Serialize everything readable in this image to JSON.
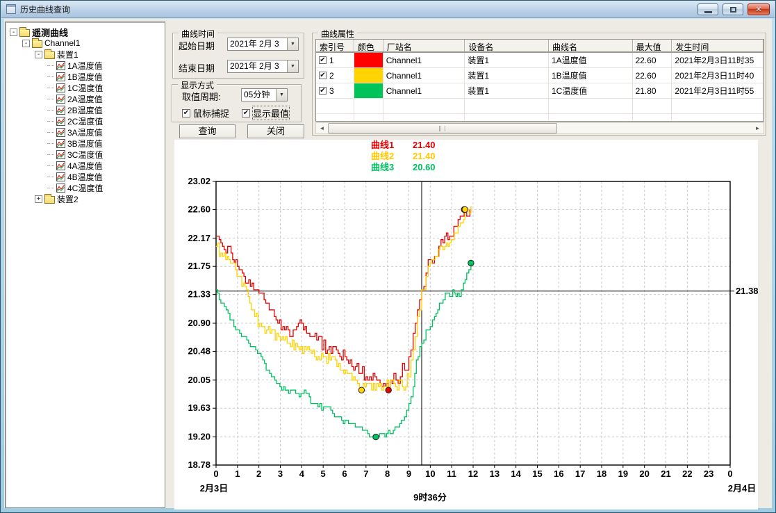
{
  "window": {
    "title": "历史曲线查询"
  },
  "icons": {
    "minimize": "minimize-icon",
    "maximize": "maximize-icon",
    "close": "close-icon",
    "dropdown": "▼",
    "scroll_left": "◄",
    "scroll_right": "►",
    "checkbox_check": "✔"
  },
  "tree": {
    "items": [
      {
        "label": "遥测曲线",
        "level": 0,
        "expand": "-",
        "icon": "folder",
        "bold": true
      },
      {
        "label": "Channel1",
        "level": 1,
        "expand": "-",
        "icon": "folder"
      },
      {
        "label": "装置1",
        "level": 2,
        "expand": "-",
        "icon": "folder"
      },
      {
        "label": "1A温度值",
        "level": 3,
        "icon": "curve"
      },
      {
        "label": "1B温度值",
        "level": 3,
        "icon": "curve"
      },
      {
        "label": "1C温度值",
        "level": 3,
        "icon": "curve"
      },
      {
        "label": "2A温度值",
        "level": 3,
        "icon": "curve"
      },
      {
        "label": "2B温度值",
        "level": 3,
        "icon": "curve"
      },
      {
        "label": "2C温度值",
        "level": 3,
        "icon": "curve"
      },
      {
        "label": "3A温度值",
        "level": 3,
        "icon": "curve"
      },
      {
        "label": "3B温度值",
        "level": 3,
        "icon": "curve"
      },
      {
        "label": "3C温度值",
        "level": 3,
        "icon": "curve"
      },
      {
        "label": "4A温度值",
        "level": 3,
        "icon": "curve"
      },
      {
        "label": "4B温度值",
        "level": 3,
        "icon": "curve"
      },
      {
        "label": "4C温度值",
        "level": 3,
        "icon": "curve"
      },
      {
        "label": "装置2",
        "level": 2,
        "expand": "+",
        "icon": "folder"
      }
    ]
  },
  "curve_time": {
    "title": "曲线时间",
    "start_label": "起始日期",
    "start_value": "2021年 2月 3",
    "end_label": "结束日期",
    "end_value": "2021年 2月 3"
  },
  "display_mode": {
    "title": "显示方式",
    "period_label": "取值周期:",
    "period_value": "05分钟",
    "mouse_capture_label": "鼠标捕捉",
    "show_extremes_label": "显示最值"
  },
  "actions": {
    "query": "查询",
    "close": "关闭"
  },
  "properties": {
    "title": "曲线属性",
    "columns": [
      "索引号",
      "颜色",
      "厂站名",
      "设备名",
      "曲线名",
      "最大值",
      "发生时间"
    ],
    "rows": [
      {
        "index": "1",
        "color": "#ff0000",
        "station": "Channel1",
        "device": "装置1",
        "curve": "1A温度值",
        "max": "22.60",
        "time": "2021年2月3日11时35"
      },
      {
        "index": "2",
        "color": "#ffd400",
        "station": "Channel1",
        "device": "装置1",
        "curve": "1B温度值",
        "max": "22.60",
        "time": "2021年2月3日11时40"
      },
      {
        "index": "3",
        "color": "#00c35a",
        "station": "Channel1",
        "device": "装置1",
        "curve": "1C温度值",
        "max": "21.80",
        "time": "2021年2月3日11时55"
      }
    ]
  },
  "legend": {
    "items": [
      {
        "label": "曲线1",
        "value": "21.40",
        "color": "#e60000"
      },
      {
        "label": "曲线2",
        "value": "21.40",
        "color": "#ffc800"
      },
      {
        "label": "曲线3",
        "value": "20.60",
        "color": "#00c060"
      }
    ]
  },
  "chart_data": {
    "type": "line",
    "x_axis": {
      "range": [
        0,
        24
      ],
      "ticks": [
        "0",
        "1",
        "2",
        "3",
        "4",
        "5",
        "6",
        "7",
        "8",
        "9",
        "10",
        "11",
        "12",
        "13",
        "14",
        "15",
        "16",
        "17",
        "18",
        "19",
        "20",
        "21",
        "22",
        "23",
        "0"
      ],
      "date_start": "2月3日",
      "date_end": "2月4日"
    },
    "y_axis": {
      "range": [
        18.78,
        23.02
      ],
      "ticks": [
        "23.02",
        "22.60",
        "22.17",
        "21.75",
        "21.33",
        "20.90",
        "20.48",
        "20.05",
        "19.63",
        "19.20",
        "18.78"
      ]
    },
    "crosshair": {
      "x_hours": 9.6,
      "x_label": "9时36分",
      "y_value": 21.38,
      "y_label": "21.38"
    },
    "series": [
      {
        "name": "曲线1",
        "curve": "1A温度值",
        "color": "#e60000",
        "noise": 0.09,
        "value_at_crosshair": 21.4,
        "min_marker": [
          8.05,
          19.9
        ],
        "max_marker": [
          11.58,
          22.6
        ],
        "points": [
          [
            0,
            22.2
          ],
          [
            0.3,
            22.05
          ],
          [
            0.7,
            21.95
          ],
          [
            1,
            21.75
          ],
          [
            1.3,
            21.6
          ],
          [
            1.6,
            21.45
          ],
          [
            2,
            21.33
          ],
          [
            2.4,
            21.18
          ],
          [
            2.8,
            20.95
          ],
          [
            3.2,
            20.8
          ],
          [
            3.6,
            20.78
          ],
          [
            4,
            20.88
          ],
          [
            4.3,
            20.75
          ],
          [
            4.7,
            20.65
          ],
          [
            5.2,
            20.5
          ],
          [
            5.7,
            20.45
          ],
          [
            6.1,
            20.35
          ],
          [
            6.5,
            20.25
          ],
          [
            7,
            20.1
          ],
          [
            7.5,
            20.05
          ],
          [
            8.05,
            19.9
          ],
          [
            8.3,
            20.15
          ],
          [
            8.5,
            20
          ],
          [
            8.7,
            20.3
          ],
          [
            8.9,
            20.2
          ],
          [
            9.1,
            20.5
          ],
          [
            9.3,
            20.9
          ],
          [
            9.5,
            21.25
          ],
          [
            9.6,
            21.4
          ],
          [
            9.8,
            21.65
          ],
          [
            10,
            21.85
          ],
          [
            10.2,
            21.9
          ],
          [
            10.4,
            22.05
          ],
          [
            10.6,
            22.1
          ],
          [
            10.75,
            22.25
          ],
          [
            10.9,
            22.2
          ],
          [
            11.1,
            22.35
          ],
          [
            11.3,
            22.45
          ],
          [
            11.58,
            22.6
          ],
          [
            11.7,
            22.5
          ],
          [
            11.85,
            22.6
          ]
        ]
      },
      {
        "name": "曲线2",
        "curve": "1B温度值",
        "color": "#ffd200",
        "noise": 0.09,
        "value_at_crosshair": 21.4,
        "min_marker": [
          6.79,
          19.9
        ],
        "max_marker": [
          11.62,
          22.6
        ],
        "points": [
          [
            0,
            22.05
          ],
          [
            0.3,
            21.9
          ],
          [
            0.6,
            21.85
          ],
          [
            0.9,
            21.7
          ],
          [
            1.2,
            21.45
          ],
          [
            1.5,
            21.3
          ],
          [
            1.8,
            21
          ],
          [
            2.2,
            20.85
          ],
          [
            2.6,
            20.78
          ],
          [
            3,
            20.65
          ],
          [
            3.4,
            20.6
          ],
          [
            3.8,
            20.55
          ],
          [
            4.2,
            20.5
          ],
          [
            4.6,
            20.42
          ],
          [
            5,
            20.4
          ],
          [
            5.4,
            20.38
          ],
          [
            5.8,
            20.2
          ],
          [
            6.2,
            20.15
          ],
          [
            6.5,
            20.05
          ],
          [
            6.79,
            19.9
          ],
          [
            7.1,
            20
          ],
          [
            7.5,
            19.98
          ],
          [
            7.9,
            19.95
          ],
          [
            8.3,
            20
          ],
          [
            8.7,
            19.95
          ],
          [
            9,
            20.1
          ],
          [
            9.2,
            20.5
          ],
          [
            9.4,
            21
          ],
          [
            9.6,
            21.4
          ],
          [
            9.8,
            21.6
          ],
          [
            10,
            21.8
          ],
          [
            10.3,
            21.9
          ],
          [
            10.6,
            22
          ],
          [
            10.9,
            22.1
          ],
          [
            11.2,
            22.25
          ],
          [
            11.4,
            22.4
          ],
          [
            11.62,
            22.6
          ],
          [
            11.9,
            22.65
          ]
        ]
      },
      {
        "name": "曲线3",
        "curve": "1C温度值",
        "color": "#00c060",
        "noise": 0.05,
        "value_at_crosshair": 20.6,
        "min_marker": [
          7.46,
          19.2
        ],
        "max_marker": [
          11.9,
          21.8
        ],
        "points": [
          [
            0,
            21.38
          ],
          [
            0.3,
            21.2
          ],
          [
            0.65,
            20.95
          ],
          [
            1.1,
            20.75
          ],
          [
            1.6,
            20.55
          ],
          [
            2.1,
            20.4
          ],
          [
            2.5,
            20.15
          ],
          [
            2.9,
            20
          ],
          [
            3.3,
            19.9
          ],
          [
            3.8,
            19.85
          ],
          [
            4.2,
            19.85
          ],
          [
            4.5,
            19.7
          ],
          [
            5.1,
            19.63
          ],
          [
            5.7,
            19.5
          ],
          [
            6.1,
            19.45
          ],
          [
            6.5,
            19.35
          ],
          [
            7,
            19.28
          ],
          [
            7.46,
            19.2
          ],
          [
            7.8,
            19.25
          ],
          [
            8.2,
            19.25
          ],
          [
            8.5,
            19.35
          ],
          [
            8.8,
            19.5
          ],
          [
            9,
            19.7
          ],
          [
            9.2,
            19.95
          ],
          [
            9.35,
            20.35
          ],
          [
            9.6,
            20.6
          ],
          [
            9.8,
            20.78
          ],
          [
            10,
            20.85
          ],
          [
            10.2,
            21
          ],
          [
            10.5,
            21.2
          ],
          [
            10.7,
            21.33
          ],
          [
            10.9,
            21.28
          ],
          [
            11.05,
            21.4
          ],
          [
            11.2,
            21.3
          ],
          [
            11.35,
            21.32
          ],
          [
            11.55,
            21.5
          ],
          [
            11.7,
            21.67
          ],
          [
            11.9,
            21.8
          ]
        ]
      }
    ]
  }
}
